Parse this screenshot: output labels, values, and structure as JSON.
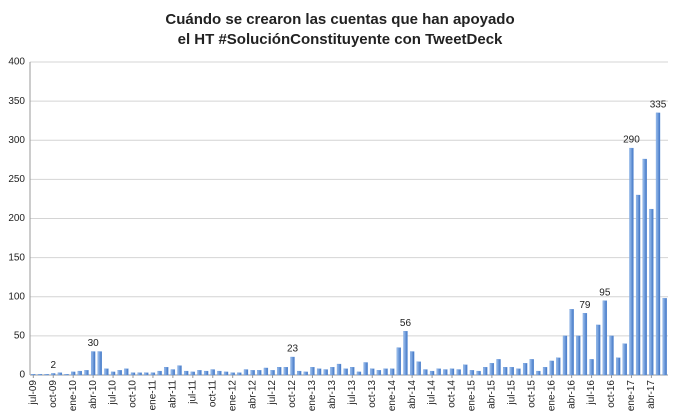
{
  "chart_data": {
    "type": "bar",
    "title": [
      "Cuándo se crearon las cuentas que han apoyado",
      "el HT #SoluciónConstituyente con TweetDeck"
    ],
    "categories": [
      "jul-09",
      null,
      null,
      "oct-09",
      null,
      null,
      "ene-10",
      null,
      null,
      "abr-10",
      null,
      null,
      "jul-10",
      null,
      null,
      "oct-10",
      null,
      null,
      "ene-11",
      null,
      null,
      "abr-11",
      null,
      null,
      "jul-11",
      null,
      null,
      "oct-11",
      null,
      null,
      "ene-12",
      null,
      null,
      "abr-12",
      null,
      null,
      "jul-12",
      null,
      null,
      "oct-12",
      null,
      null,
      "ene-13",
      null,
      null,
      "abr-13",
      null,
      null,
      "jul-13",
      null,
      null,
      "oct-13",
      null,
      null,
      "ene-14",
      null,
      null,
      "abr-14",
      null,
      null,
      "jul-14",
      null,
      null,
      "oct-14",
      null,
      null,
      "ene-15",
      null,
      null,
      "abr-15",
      null,
      null,
      "jul-15",
      null,
      null,
      "oct-15",
      null,
      null,
      "ene-16",
      null,
      null,
      "abr-16",
      null,
      null,
      "jul-16",
      null,
      null,
      "oct-16",
      null,
      null,
      "ene-17",
      null,
      null,
      "abr-17",
      null,
      null
    ],
    "values": [
      1,
      1,
      1,
      2,
      3,
      1,
      4,
      5,
      6,
      30,
      30,
      8,
      4,
      6,
      8,
      3,
      3,
      3,
      3,
      5,
      10,
      7,
      12,
      5,
      4,
      6,
      5,
      7,
      5,
      4,
      3,
      3,
      7,
      6,
      6,
      9,
      6,
      10,
      10,
      23,
      5,
      4,
      10,
      8,
      7,
      10,
      14,
      8,
      10,
      4,
      16,
      8,
      6,
      8,
      8,
      35,
      56,
      30,
      17,
      7,
      5,
      8,
      7,
      8,
      7,
      13,
      6,
      5,
      10,
      15,
      20,
      10,
      10,
      8,
      15,
      20,
      5,
      10,
      18,
      22,
      50,
      84,
      50,
      79,
      20,
      64,
      95,
      50,
      22,
      40,
      290,
      230,
      276,
      212,
      335,
      98
    ],
    "value_labels": [
      null,
      null,
      null,
      "2",
      null,
      null,
      null,
      null,
      null,
      "30",
      null,
      null,
      null,
      null,
      null,
      null,
      null,
      null,
      null,
      null,
      null,
      null,
      null,
      null,
      null,
      null,
      null,
      null,
      null,
      null,
      null,
      null,
      null,
      null,
      null,
      null,
      null,
      null,
      null,
      "23",
      null,
      null,
      null,
      null,
      null,
      null,
      null,
      null,
      null,
      null,
      null,
      null,
      null,
      null,
      null,
      null,
      "56",
      null,
      null,
      null,
      null,
      null,
      null,
      null,
      null,
      null,
      null,
      null,
      null,
      null,
      null,
      null,
      null,
      null,
      null,
      null,
      null,
      null,
      null,
      null,
      null,
      null,
      null,
      "79",
      null,
      null,
      "95",
      null,
      null,
      null,
      "290",
      null,
      null,
      null,
      "335",
      null
    ],
    "color": "#5b8fd6",
    "ylim": [
      0,
      400
    ],
    "yticks": [
      0,
      50,
      100,
      150,
      200,
      250,
      300,
      350,
      400
    ],
    "grid": true
  }
}
